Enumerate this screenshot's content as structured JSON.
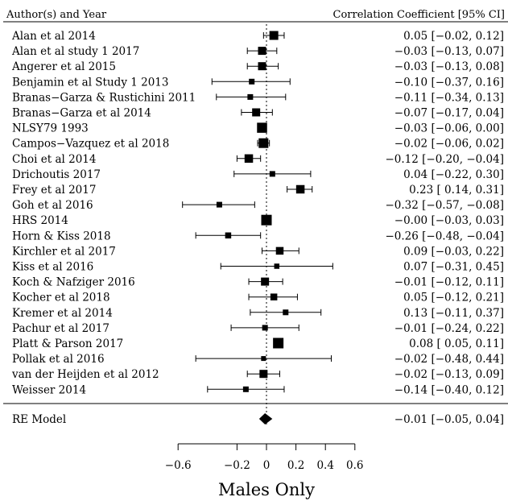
{
  "chart_data": {
    "type": "forest",
    "header_left": "Author(s) and Year",
    "header_right": "Correlation Coefficient [95% CI]",
    "xlabel": "Males Only",
    "xlim": [
      -0.6,
      0.6
    ],
    "xticks": [
      -0.6,
      -0.2,
      0,
      0.2,
      0.4,
      0.6
    ],
    "xtick_labels": [
      "−0.6",
      "−0.2",
      "0",
      "0.2",
      "0.4",
      "0.6"
    ],
    "reference_line": 0,
    "studies": [
      {
        "label": "Alan et al 2014",
        "est": 0.05,
        "lo": -0.02,
        "hi": 0.12,
        "ci_text": "0.05 [−0.02, 0.12]",
        "weight": 0.8
      },
      {
        "label": "Alan et al study 1 2017",
        "est": -0.03,
        "lo": -0.13,
        "hi": 0.07,
        "ci_text": "−0.03 [−0.13, 0.07]",
        "weight": 0.7
      },
      {
        "label": "Angerer et al 2015",
        "est": -0.03,
        "lo": -0.13,
        "hi": 0.08,
        "ci_text": "−0.03 [−0.13, 0.08]",
        "weight": 0.7
      },
      {
        "label": "Benjamin et al Study 1 2013",
        "est": -0.1,
        "lo": -0.37,
        "hi": 0.16,
        "ci_text": "−0.10 [−0.37, 0.16]",
        "weight": 0.4
      },
      {
        "label": "Branas−Garza & Rustichini 2011",
        "est": -0.11,
        "lo": -0.34,
        "hi": 0.13,
        "ci_text": "−0.11 [−0.34, 0.13]",
        "weight": 0.4
      },
      {
        "label": "Branas−Garza et al 2014",
        "est": -0.07,
        "lo": -0.17,
        "hi": 0.04,
        "ci_text": "−0.07 [−0.17, 0.04]",
        "weight": 0.7
      },
      {
        "label": "NLSY79 1993",
        "est": -0.03,
        "lo": -0.06,
        "hi": 0.0,
        "ci_text": "−0.03 [−0.06, 0.00]",
        "weight": 0.95
      },
      {
        "label": "Campos−Vazquez et al 2018",
        "est": -0.02,
        "lo": -0.06,
        "hi": 0.02,
        "ci_text": "−0.02 [−0.06, 0.02]",
        "weight": 0.9
      },
      {
        "label": "Choi et al 2014",
        "est": -0.12,
        "lo": -0.2,
        "hi": -0.04,
        "ci_text": "−0.12 [−0.20, −0.04]",
        "weight": 0.75
      },
      {
        "label": "Drichoutis 2017",
        "est": 0.04,
        "lo": -0.22,
        "hi": 0.3,
        "ci_text": "0.04 [−0.22, 0.30]",
        "weight": 0.4
      },
      {
        "label": "Frey et al 2017",
        "est": 0.23,
        "lo": 0.14,
        "hi": 0.31,
        "ci_text": "0.23 [ 0.14, 0.31]",
        "weight": 0.75
      },
      {
        "label": "Goh et al 2016",
        "est": -0.32,
        "lo": -0.57,
        "hi": -0.08,
        "ci_text": "−0.32 [−0.57, −0.08]",
        "weight": 0.4
      },
      {
        "label": "HRS 2014",
        "est": -0.0,
        "lo": -0.03,
        "hi": 0.03,
        "ci_text": "−0.00 [−0.03, 0.03]",
        "weight": 1.0
      },
      {
        "label": "Horn & Kiss 2018",
        "est": -0.26,
        "lo": -0.48,
        "hi": -0.04,
        "ci_text": "−0.26 [−0.48, −0.04]",
        "weight": 0.45
      },
      {
        "label": "Kirchler et al 2017",
        "est": 0.09,
        "lo": -0.03,
        "hi": 0.22,
        "ci_text": "0.09 [−0.03, 0.22]",
        "weight": 0.65
      },
      {
        "label": "Kiss et al 2016",
        "est": 0.07,
        "lo": -0.31,
        "hi": 0.45,
        "ci_text": "0.07 [−0.31, 0.45]",
        "weight": 0.35
      },
      {
        "label": "Koch & Nafziger 2016",
        "est": -0.01,
        "lo": -0.12,
        "hi": 0.11,
        "ci_text": "−0.01 [−0.12, 0.11]",
        "weight": 0.7
      },
      {
        "label": "Kocher et al 2018",
        "est": 0.05,
        "lo": -0.12,
        "hi": 0.21,
        "ci_text": "0.05 [−0.12, 0.21]",
        "weight": 0.55
      },
      {
        "label": "Kremer et al 2014",
        "est": 0.13,
        "lo": -0.11,
        "hi": 0.37,
        "ci_text": "0.13 [−0.11, 0.37]",
        "weight": 0.4
      },
      {
        "label": "Pachur et al 2017",
        "est": -0.01,
        "lo": -0.24,
        "hi": 0.22,
        "ci_text": "−0.01 [−0.24, 0.22]",
        "weight": 0.4
      },
      {
        "label": "Platt & Parson 2017",
        "est": 0.08,
        "lo": 0.05,
        "hi": 0.11,
        "ci_text": "0.08 [ 0.05, 0.11]",
        "weight": 1.0
      },
      {
        "label": "Pollak et al 2016",
        "est": -0.02,
        "lo": -0.48,
        "hi": 0.44,
        "ci_text": "−0.02 [−0.48, 0.44]",
        "weight": 0.3
      },
      {
        "label": "van der Heijden et al 2012",
        "est": -0.02,
        "lo": -0.13,
        "hi": 0.09,
        "ci_text": "−0.02 [−0.13, 0.09]",
        "weight": 0.7
      },
      {
        "label": "Weisser 2014",
        "est": -0.14,
        "lo": -0.4,
        "hi": 0.12,
        "ci_text": "−0.14 [−0.40, 0.12]",
        "weight": 0.4
      }
    ],
    "summary": {
      "label": "RE Model",
      "est": -0.01,
      "lo": -0.05,
      "hi": 0.04,
      "ci_text": "−0.01 [−0.05, 0.04]"
    }
  }
}
